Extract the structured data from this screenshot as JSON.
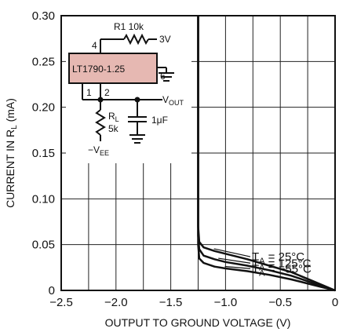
{
  "chart_data": {
    "type": "line",
    "xlabel": "OUTPUT TO GROUND VOLTAGE (V)",
    "ylabel_main": "CURRENT IN R",
    "ylabel_sub": "L",
    "ylabel_unit": " (mA)",
    "xlim": [
      -2.5,
      0
    ],
    "ylim": [
      0,
      0.3
    ],
    "xticks": [
      -2.5,
      -2.0,
      -1.5,
      -1.0,
      -0.5,
      0
    ],
    "xtick_labels": [
      "−2.5",
      "−2.0",
      "−1.5",
      "−1.0",
      "−0.5",
      "0"
    ],
    "yticks": [
      0,
      0.05,
      0.1,
      0.15,
      0.2,
      0.25,
      0.3
    ],
    "ytick_labels": [
      "0",
      "0.05",
      "0.10",
      "0.15",
      "0.20",
      "0.25",
      "0.30"
    ],
    "grid": true,
    "series": [
      {
        "name_main": "T",
        "name_sub": "A",
        "name_rest": " = 25°C",
        "points": [
          [
            -1.25,
            0.3
          ],
          [
            -1.25,
            0.07
          ],
          [
            -1.24,
            0.053
          ],
          [
            -1.2,
            0.047
          ],
          [
            -1.1,
            0.043
          ],
          [
            -1.0,
            0.04
          ],
          [
            -0.8,
            0.034
          ],
          [
            -0.6,
            0.027
          ],
          [
            -0.4,
            0.02
          ],
          [
            -0.2,
            0.01
          ],
          [
            0,
            0
          ]
        ]
      },
      {
        "name_main": "T",
        "name_sub": "A",
        "name_rest": " = 125°C",
        "points": [
          [
            -1.25,
            0.3
          ],
          [
            -1.25,
            0.06
          ],
          [
            -1.24,
            0.045
          ],
          [
            -1.2,
            0.038
          ],
          [
            -1.1,
            0.034
          ],
          [
            -1.0,
            0.031
          ],
          [
            -0.8,
            0.027
          ],
          [
            -0.6,
            0.022
          ],
          [
            -0.4,
            0.016
          ],
          [
            -0.2,
            0.008
          ],
          [
            0,
            0
          ]
        ]
      },
      {
        "name_main": "T",
        "name_sub": "A",
        "name_rest": " = −55°C",
        "points": [
          [
            -1.25,
            0.3
          ],
          [
            -1.25,
            0.05
          ],
          [
            -1.24,
            0.035
          ],
          [
            -1.2,
            0.03
          ],
          [
            -1.1,
            0.026
          ],
          [
            -1.0,
            0.024
          ],
          [
            -0.8,
            0.021
          ],
          [
            -0.6,
            0.017
          ],
          [
            -0.4,
            0.012
          ],
          [
            -0.2,
            0.006
          ],
          [
            0,
            0
          ]
        ]
      }
    ],
    "inset_schematic": {
      "ic_label": "LT1790-1.25",
      "ic_fill": "#e6b8b2",
      "pin_4": "4",
      "pin_6": "6",
      "pin_1": "1",
      "pin_2": "2",
      "r1_label": "R1 10k",
      "supply": "3V",
      "vout_main": "V",
      "vout_sub": "OUT",
      "rl_main": "R",
      "rl_sub": "L",
      "rl_value": "5k",
      "cap_label": "1μF",
      "vee_main": "−V",
      "vee_sub": "EE"
    }
  }
}
